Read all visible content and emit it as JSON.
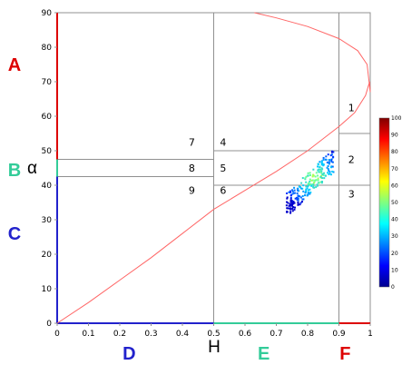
{
  "chart_data": {
    "type": "scatter",
    "xlabel": "H",
    "ylabel": "α",
    "xlim": [
      0,
      1
    ],
    "ylim": [
      0,
      90
    ],
    "xticks": [
      "0",
      "0.1",
      "0.2",
      "0.3",
      "0.4",
      "0.5",
      "0.6",
      "0.7",
      "0.8",
      "0.9",
      "1"
    ],
    "yticks": [
      "0",
      "10",
      "20",
      "30",
      "40",
      "50",
      "60",
      "70",
      "80",
      "90"
    ],
    "x_class_boundaries": [
      0.5,
      0.9
    ],
    "y_class_boundaries": [
      {
        "alpha": 47.5,
        "x_from": 0,
        "x_to": 0.5
      },
      {
        "alpha": 42.5,
        "x_from": 0,
        "x_to": 0.5
      },
      {
        "alpha": 50,
        "x_from": 0.5,
        "x_to": 0.9
      },
      {
        "alpha": 40,
        "x_from": 0.5,
        "x_to": 1
      },
      {
        "alpha": 55,
        "x_from": 0.9,
        "x_to": 1
      }
    ],
    "zones": [
      {
        "label": "1",
        "x": 0.94,
        "y": 62.5
      },
      {
        "label": "2",
        "x": 0.94,
        "y": 47.5
      },
      {
        "label": "3",
        "x": 0.94,
        "y": 37.5
      },
      {
        "label": "4",
        "x": 0.53,
        "y": 52.5
      },
      {
        "label": "5",
        "x": 0.53,
        "y": 45
      },
      {
        "label": "6",
        "x": 0.53,
        "y": 38.5
      },
      {
        "label": "7",
        "x": 0.43,
        "y": 52.5
      },
      {
        "label": "8",
        "x": 0.43,
        "y": 45
      },
      {
        "label": "9",
        "x": 0.43,
        "y": 38.5
      }
    ],
    "y_groups": [
      {
        "label": "A",
        "from": 47.5,
        "to": 90,
        "color": "#dd0000"
      },
      {
        "label": "B",
        "from": 42.5,
        "to": 47.5,
        "color": "#33cc99"
      },
      {
        "label": "C",
        "from": 0,
        "to": 42.5,
        "color": "#2222cc"
      }
    ],
    "x_groups": [
      {
        "label": "D",
        "from": 0,
        "to": 0.5,
        "color": "#2222cc"
      },
      {
        "label": "E",
        "from": 0.5,
        "to": 0.9,
        "color": "#33cc99"
      },
      {
        "label": "F",
        "from": 0.9,
        "to": 1,
        "color": "#dd0000"
      }
    ],
    "feasibility_curve": {
      "color": "#ff6666",
      "points": [
        [
          0,
          0
        ],
        [
          0.1,
          6
        ],
        [
          0.2,
          12.5
        ],
        [
          0.3,
          19
        ],
        [
          0.4,
          26
        ],
        [
          0.5,
          33
        ],
        [
          0.6,
          38.5
        ],
        [
          0.7,
          44
        ],
        [
          0.8,
          50
        ],
        [
          0.9,
          57
        ],
        [
          0.95,
          61
        ],
        [
          0.985,
          66
        ],
        [
          0.998,
          70
        ],
        [
          1.0,
          67
        ],
        [
          0.99,
          75
        ],
        [
          0.96,
          79
        ],
        [
          0.9,
          82.5
        ],
        [
          0.8,
          86
        ],
        [
          0.7,
          88.5
        ],
        [
          0.63,
          90
        ]
      ]
    },
    "scatter_cluster": {
      "x_range": [
        0.73,
        0.88
      ],
      "y_range": [
        34.5,
        47.5
      ],
      "center": [
        0.82,
        42.5
      ]
    },
    "colorbar": {
      "min": 0,
      "max": 100,
      "ticks": [
        "100",
        "90",
        "80",
        "70",
        "60",
        "50",
        "40",
        "30",
        "20",
        "10",
        "0"
      ],
      "colors": [
        "#00008f",
        "#0000ff",
        "#0080ff",
        "#00ffff",
        "#80ff80",
        "#ffff00",
        "#ff8000",
        "#ff0000",
        "#800000"
      ]
    },
    "grid": false
  }
}
